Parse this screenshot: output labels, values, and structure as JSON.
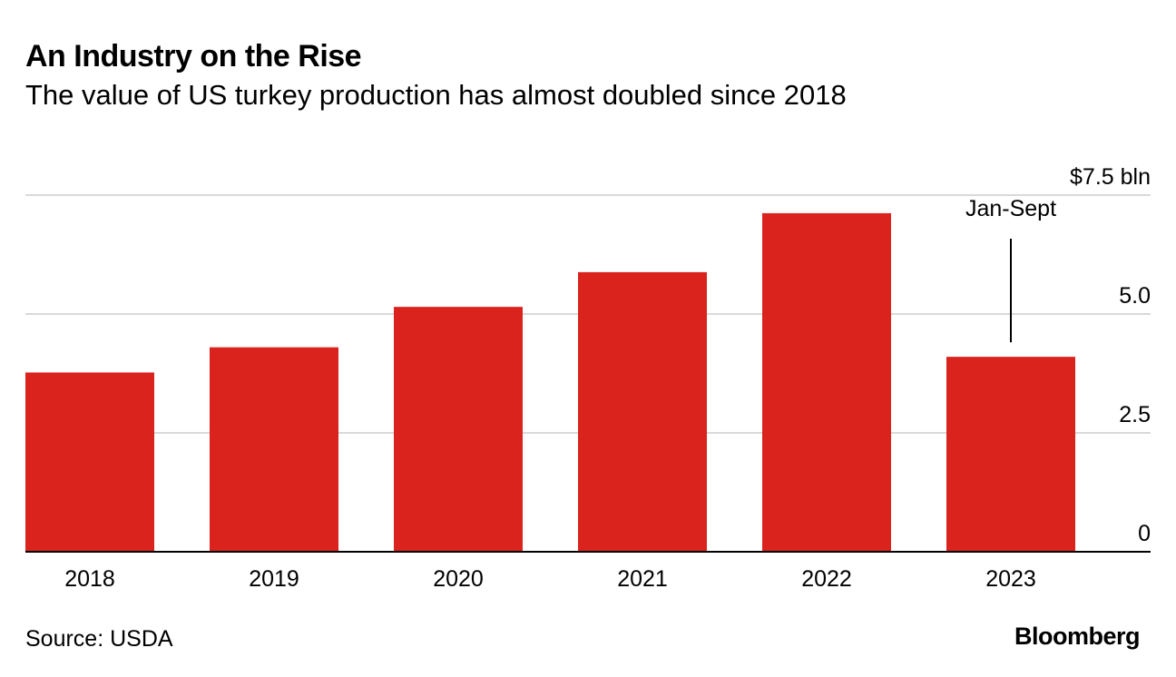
{
  "header": {
    "title": "An Industry on the Rise",
    "subtitle": "The value of US turkey production has almost doubled since 2018"
  },
  "footer": {
    "source": "Source: USDA",
    "brand": "Bloomberg"
  },
  "colors": {
    "bar": "#db231e",
    "grid": "#d9d9d9",
    "axis": "#000000",
    "text": "#000000"
  },
  "chart_data": {
    "type": "bar",
    "title": "An Industry on the Rise",
    "subtitle": "The value of US turkey production has almost doubled since 2018",
    "categories": [
      "2018",
      "2019",
      "2020",
      "2021",
      "2022",
      "2023"
    ],
    "values": [
      3.77,
      4.3,
      5.15,
      5.88,
      7.12,
      4.1
    ],
    "unit": "bln USD",
    "ylim": [
      0,
      7.5
    ],
    "yticks": [
      0,
      2.5,
      5.0,
      7.5
    ],
    "ytick_labels": [
      "0",
      "2.5",
      "5.0",
      "$7.5 bln"
    ],
    "ylabel": "",
    "xlabel": "",
    "grid": true,
    "yaxis_side": "right",
    "annotations": [
      {
        "category": "2023",
        "text": "Jan-Sept"
      }
    ]
  }
}
